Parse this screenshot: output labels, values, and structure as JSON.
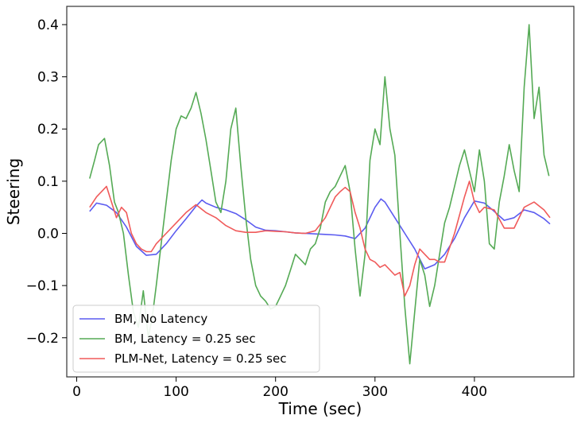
{
  "chart_data": {
    "type": "line",
    "xlabel": "Time (sec)",
    "ylabel": "Steering",
    "xlim": [
      -10,
      500
    ],
    "ylim": [
      -0.275,
      0.435
    ],
    "x_ticks": [
      0,
      100,
      200,
      300,
      400
    ],
    "y_ticks": [
      -0.2,
      -0.1,
      0.0,
      0.1,
      0.2,
      0.3,
      0.4
    ],
    "x_tick_labels": [
      "0",
      "100",
      "200",
      "300",
      "400"
    ],
    "y_tick_labels": [
      "−0.2",
      "−0.1",
      "0.0",
      "0.1",
      "0.2",
      "0.3",
      "0.4"
    ],
    "grid": false,
    "legend_position": "bottom-left",
    "series": [
      {
        "name": "BM, No Latency",
        "color": "#5b5bf0",
        "x": [
          13,
          20,
          30,
          40,
          50,
          60,
          70,
          80,
          90,
          100,
          110,
          120,
          126,
          130,
          140,
          150,
          160,
          170,
          180,
          190,
          200,
          210,
          220,
          230,
          240,
          250,
          260,
          270,
          280,
          290,
          300,
          306,
          310,
          320,
          330,
          340,
          350,
          360,
          370,
          380,
          390,
          400,
          410,
          420,
          430,
          440,
          450,
          460,
          470,
          476
        ],
        "y": [
          0.042,
          0.058,
          0.054,
          0.04,
          0.012,
          -0.025,
          -0.042,
          -0.04,
          -0.02,
          0.005,
          0.028,
          0.052,
          0.064,
          0.058,
          0.05,
          0.045,
          0.038,
          0.026,
          0.012,
          0.006,
          0.005,
          0.003,
          0.001,
          0.0,
          -0.001,
          -0.002,
          -0.003,
          -0.005,
          -0.01,
          0.01,
          0.05,
          0.066,
          0.06,
          0.03,
          0.0,
          -0.03,
          -0.068,
          -0.06,
          -0.04,
          -0.01,
          0.03,
          0.062,
          0.058,
          0.042,
          0.025,
          0.03,
          0.045,
          0.04,
          0.028,
          0.018
        ]
      },
      {
        "name": "BM, Latency = 0.25 sec",
        "color": "#55aa55",
        "x": [
          13,
          18,
          22,
          28,
          33,
          38,
          42,
          47,
          52,
          57,
          62,
          67,
          72,
          76,
          80,
          85,
          90,
          95,
          100,
          105,
          110,
          115,
          120,
          125,
          130,
          135,
          140,
          145,
          150,
          155,
          160,
          165,
          170,
          175,
          180,
          185,
          190,
          195,
          200,
          205,
          210,
          215,
          220,
          225,
          230,
          235,
          240,
          245,
          250,
          255,
          260,
          265,
          270,
          275,
          280,
          285,
          290,
          295,
          300,
          305,
          310,
          315,
          320,
          325,
          330,
          335,
          340,
          345,
          350,
          355,
          360,
          365,
          370,
          375,
          380,
          385,
          390,
          395,
          400,
          405,
          410,
          415,
          420,
          425,
          430,
          435,
          440,
          445,
          450,
          455,
          460,
          465,
          470,
          475
        ],
        "y": [
          0.105,
          0.14,
          0.17,
          0.182,
          0.13,
          0.06,
          0.04,
          0.0,
          -0.08,
          -0.15,
          -0.18,
          -0.11,
          -0.2,
          -0.16,
          -0.1,
          -0.02,
          0.06,
          0.14,
          0.2,
          0.225,
          0.22,
          0.24,
          0.27,
          0.23,
          0.18,
          0.12,
          0.06,
          0.04,
          0.1,
          0.2,
          0.24,
          0.13,
          0.03,
          -0.05,
          -0.1,
          -0.12,
          -0.13,
          -0.145,
          -0.14,
          -0.12,
          -0.1,
          -0.07,
          -0.04,
          -0.05,
          -0.06,
          -0.03,
          -0.02,
          0.01,
          0.06,
          0.08,
          0.09,
          0.11,
          0.13,
          0.08,
          -0.03,
          -0.12,
          -0.04,
          0.14,
          0.2,
          0.17,
          0.3,
          0.2,
          0.15,
          0.0,
          -0.14,
          -0.25,
          -0.15,
          -0.05,
          -0.08,
          -0.14,
          -0.1,
          -0.04,
          0.02,
          0.05,
          0.09,
          0.13,
          0.16,
          0.12,
          0.08,
          0.16,
          0.1,
          -0.02,
          -0.03,
          0.06,
          0.11,
          0.17,
          0.12,
          0.08,
          0.28,
          0.4,
          0.22,
          0.28,
          0.15,
          0.11
        ]
      },
      {
        "name": "PLM-Net, Latency = 0.25 sec",
        "color": "#f05a5a",
        "x": [
          13,
          20,
          30,
          35,
          40,
          45,
          50,
          55,
          60,
          65,
          70,
          75,
          80,
          90,
          100,
          110,
          120,
          130,
          140,
          150,
          160,
          170,
          180,
          190,
          200,
          210,
          220,
          230,
          240,
          250,
          260,
          265,
          270,
          275,
          280,
          285,
          290,
          295,
          300,
          305,
          310,
          315,
          320,
          325,
          330,
          335,
          340,
          345,
          350,
          355,
          360,
          365,
          370,
          380,
          390,
          395,
          400,
          405,
          410,
          420,
          430,
          440,
          450,
          460,
          470,
          476
        ],
        "y": [
          0.05,
          0.07,
          0.09,
          0.06,
          0.03,
          0.05,
          0.04,
          0.0,
          -0.02,
          -0.03,
          -0.035,
          -0.035,
          -0.02,
          0.0,
          0.02,
          0.04,
          0.055,
          0.04,
          0.03,
          0.015,
          0.005,
          0.002,
          0.002,
          0.005,
          0.004,
          0.003,
          0.001,
          0.0,
          0.005,
          0.03,
          0.07,
          0.08,
          0.088,
          0.08,
          0.04,
          0.01,
          -0.03,
          -0.05,
          -0.055,
          -0.065,
          -0.06,
          -0.07,
          -0.08,
          -0.075,
          -0.12,
          -0.1,
          -0.06,
          -0.03,
          -0.04,
          -0.05,
          -0.05,
          -0.055,
          -0.055,
          0.0,
          0.07,
          0.1,
          0.06,
          0.04,
          0.05,
          0.045,
          0.01,
          0.01,
          0.05,
          0.06,
          0.045,
          0.03
        ]
      }
    ]
  }
}
